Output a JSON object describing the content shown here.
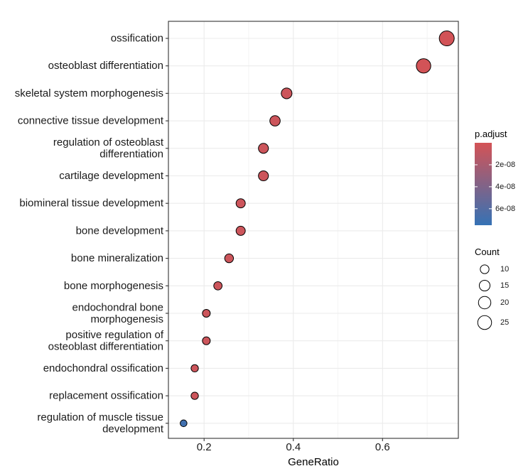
{
  "chart_data": {
    "type": "scatter",
    "subtype": "dotplot",
    "xlabel": "GeneRatio",
    "ylabel": "",
    "xlim": [
      0.12,
      0.77
    ],
    "xticks": [
      0.2,
      0.4,
      0.6
    ],
    "xtick_labels": [
      "0.2",
      "0.4",
      "0.6"
    ],
    "grid": true,
    "legend_position": "right",
    "terms": [
      {
        "label": [
          "ossification"
        ],
        "gene_ratio": 0.744,
        "count": 29,
        "p_adjust": 8e-10
      },
      {
        "label": [
          "osteoblast differentiation"
        ],
        "gene_ratio": 0.692,
        "count": 27,
        "p_adjust": 8e-10
      },
      {
        "label": [
          "skeletal system morphogenesis"
        ],
        "gene_ratio": 0.385,
        "count": 15,
        "p_adjust": 4e-09
      },
      {
        "label": [
          "connective tissue development"
        ],
        "gene_ratio": 0.359,
        "count": 14,
        "p_adjust": 4e-09
      },
      {
        "label": [
          "regulation of osteoblast",
          "differentiation"
        ],
        "gene_ratio": 0.333,
        "count": 13,
        "p_adjust": 4e-09
      },
      {
        "label": [
          "cartilage development"
        ],
        "gene_ratio": 0.333,
        "count": 13,
        "p_adjust": 4e-09
      },
      {
        "label": [
          "biomineral tissue development"
        ],
        "gene_ratio": 0.282,
        "count": 11,
        "p_adjust": 4e-09
      },
      {
        "label": [
          "bone development"
        ],
        "gene_ratio": 0.282,
        "count": 11,
        "p_adjust": 4e-09
      },
      {
        "label": [
          "bone mineralization"
        ],
        "gene_ratio": 0.256,
        "count": 10,
        "p_adjust": 4e-09
      },
      {
        "label": [
          "bone morphogenesis"
        ],
        "gene_ratio": 0.231,
        "count": 9,
        "p_adjust": 4e-09
      },
      {
        "label": [
          "endochondral bone",
          "morphogenesis"
        ],
        "gene_ratio": 0.205,
        "count": 8,
        "p_adjust": 4e-09
      },
      {
        "label": [
          "positive regulation of",
          "osteoblast differentiation"
        ],
        "gene_ratio": 0.205,
        "count": 8,
        "p_adjust": 4e-09
      },
      {
        "label": [
          "endochondral ossification"
        ],
        "gene_ratio": 0.179,
        "count": 7,
        "p_adjust": 4e-09
      },
      {
        "label": [
          "replacement ossification"
        ],
        "gene_ratio": 0.179,
        "count": 7,
        "p_adjust": 4e-09
      },
      {
        "label": [
          "regulation of muscle tissue",
          "development"
        ],
        "gene_ratio": 0.154,
        "count": 6,
        "p_adjust": 7e-08
      }
    ],
    "color_legend": {
      "title": "p.adjust",
      "min": 0,
      "max": 7.5e-08,
      "ticks": [
        2e-08,
        4e-08,
        6e-08
      ],
      "tick_labels": [
        "2e-08",
        "4e-08",
        "6e-08"
      ],
      "low_color": "#d45356",
      "high_color": "#3572b5"
    },
    "size_legend": {
      "title": "Count",
      "values": [
        10,
        15,
        20,
        25
      ],
      "labels": [
        "10",
        "15",
        "20",
        "25"
      ]
    },
    "colors": {
      "panel_border": "#333333",
      "grid": "#ebebeb",
      "text": "#000000",
      "point_stroke": "#000000"
    }
  }
}
